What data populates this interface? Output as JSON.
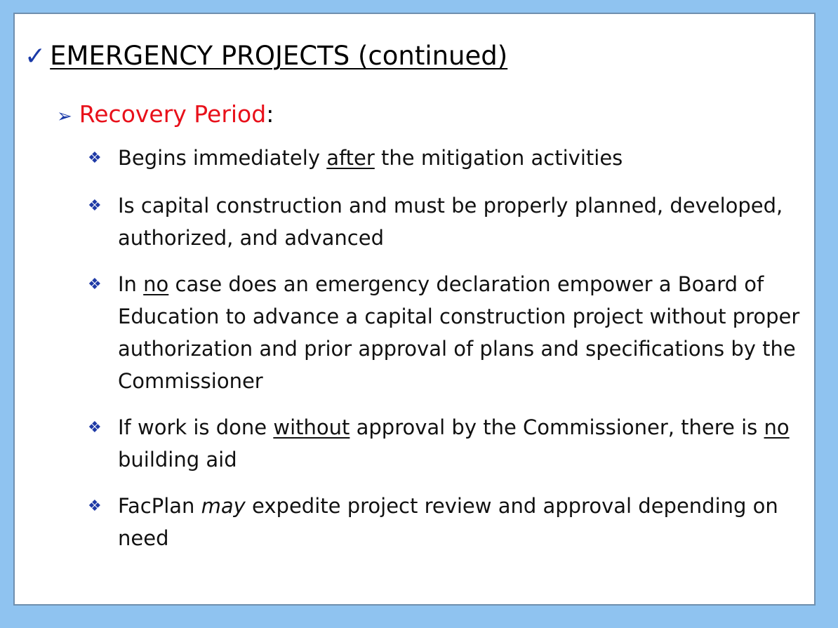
{
  "slide": {
    "title": "EMERGENCY PROJECTS (continued)",
    "check_icon": "checkmark-icon",
    "section": {
      "icon": "arrowhead-bullet-icon",
      "label": "Recovery Period",
      "suffix": ":"
    },
    "bullets": [
      {
        "icon": "four-diamond-bullet-icon",
        "parts": [
          {
            "text": "Begins immediately "
          },
          {
            "text": "after",
            "style": "underline"
          },
          {
            "text": " the mitigation activities"
          }
        ]
      },
      {
        "icon": "four-diamond-bullet-icon",
        "parts": [
          {
            "text": "Is capital construction and must be properly planned, developed, authorized, and advanced"
          }
        ]
      },
      {
        "icon": "four-diamond-bullet-icon",
        "parts": [
          {
            "text": "In "
          },
          {
            "text": "no",
            "style": "underline"
          },
          {
            "text": " case does an emergency declaration empower a Board of Education to advance a capital construction project without proper authorization and prior approval of plans and specifications by the Commissioner"
          }
        ]
      },
      {
        "icon": "four-diamond-bullet-icon",
        "parts": [
          {
            "text": "If work is done "
          },
          {
            "text": "without",
            "style": "underline"
          },
          {
            "text": " approval by the Commissioner, there is "
          },
          {
            "text": "no",
            "style": "underline"
          },
          {
            "text": " building aid"
          }
        ]
      },
      {
        "icon": "four-diamond-bullet-icon",
        "parts": [
          {
            "text": "FacPlan "
          },
          {
            "text": "may",
            "style": "italic"
          },
          {
            "text": " expedite project review and approval depending on need"
          }
        ]
      }
    ]
  },
  "colors": {
    "background": "#8fc3f0",
    "accent_blue": "#1a3aa8",
    "section_red": "#e8101a"
  }
}
